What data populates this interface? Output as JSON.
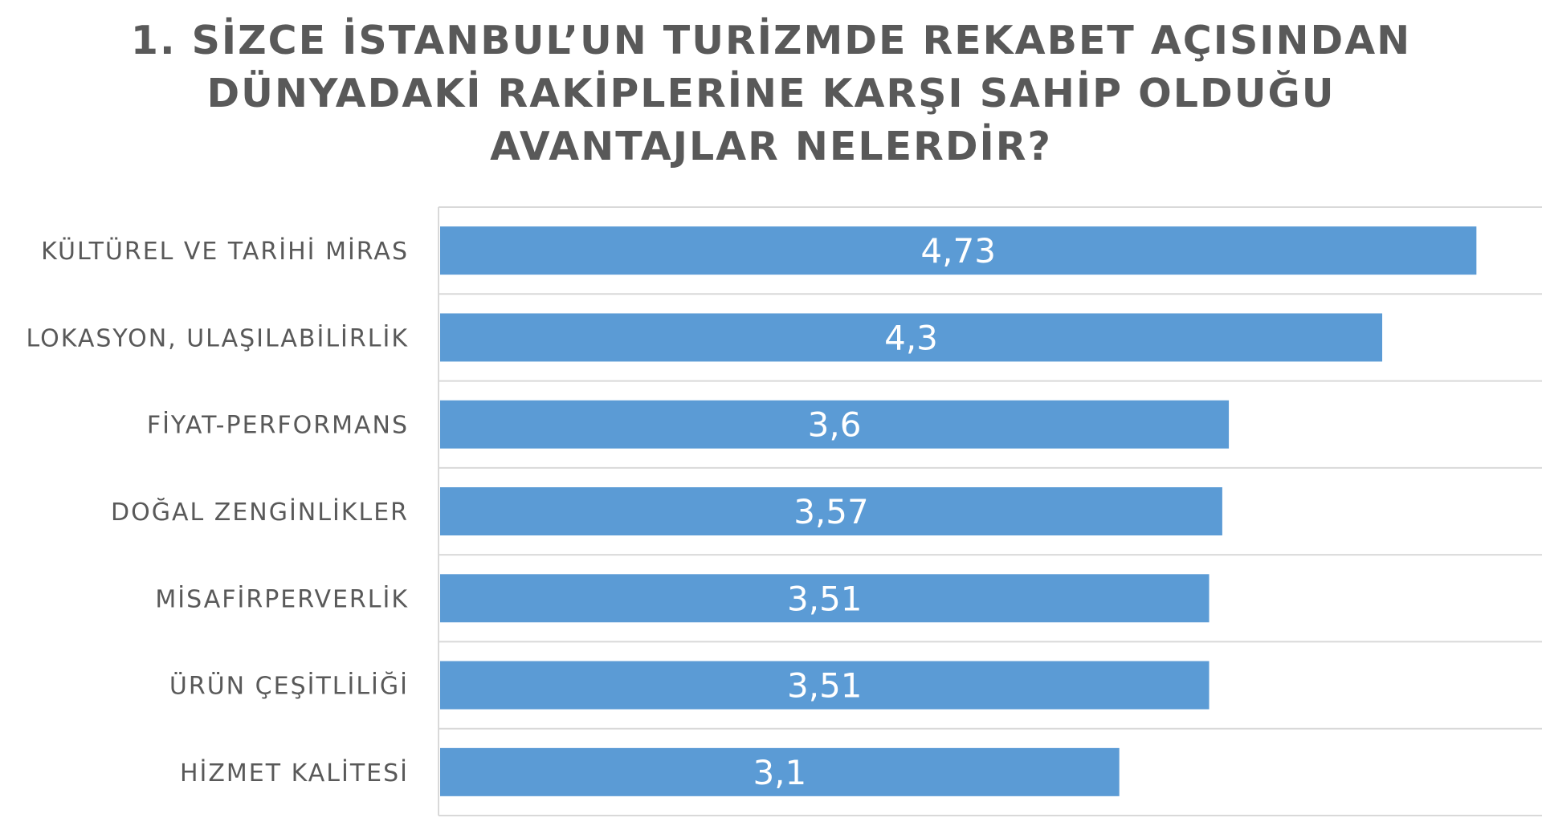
{
  "chart_data": {
    "type": "bar",
    "orientation": "horizontal",
    "title_lines": [
      "1. SİZCE İSTANBUL’UN TURİZMDE REKABET AÇISINDAN",
      "DÜNYADAKİ RAKİPLERİNE KARŞI SAHİP OLDUĞU",
      "AVANTAJLAR NELERDİR?"
    ],
    "categories": [
      "KÜLTÜREL VE TARİHİ MİRAS",
      "LOKASYON, ULAŞILABİLİRLİK",
      "FİYAT-PERFORMANS",
      "DOĞAL ZENGİNLİKLER",
      "MİSAFİRPERVERLİK",
      "ÜRÜN ÇEŞİTLİLİĞİ",
      "HİZMET KALİTESİ"
    ],
    "values": [
      4.73,
      4.3,
      3.6,
      3.57,
      3.51,
      3.51,
      3.1
    ],
    "data_labels": [
      "4,73",
      "4,3",
      "3,6",
      "3,57",
      "3,51",
      "3,51",
      "3,1"
    ],
    "xlim": [
      0,
      5
    ],
    "grid": "horizontal separators",
    "legend": "none",
    "colors": {
      "bar": "#5b9bd5",
      "title": "#595959",
      "label": "#595959",
      "grid": "#d9d9d9",
      "data_label": "#ffffff"
    }
  }
}
